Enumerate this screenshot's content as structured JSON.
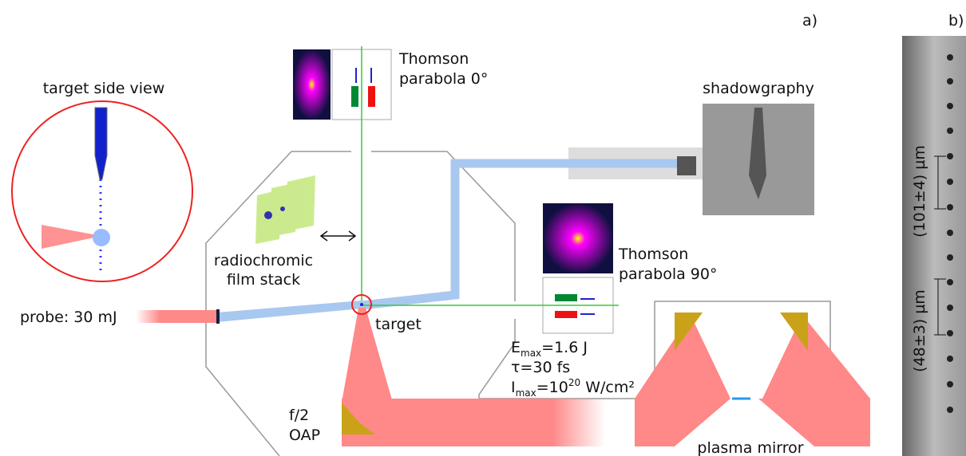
{
  "panel_labels": [
    "a)",
    "b)"
  ],
  "target_view": {
    "title": "target side view"
  },
  "thomson_0": {
    "lines": [
      "Thomson",
      "parabola 0°"
    ]
  },
  "shadowgraphy": {
    "label": "shadowgraphy"
  },
  "film": {
    "lines": [
      "radiochromic",
      "film stack"
    ]
  },
  "thomson_90": {
    "lines": [
      "Thomson",
      "parabola 90°"
    ]
  },
  "probe": {
    "label": "probe: 30 mJ"
  },
  "target": {
    "label": "target"
  },
  "laser": {
    "energy": {
      "symbol": "E",
      "sub": "max",
      "value": "=1.6 J"
    },
    "duration": "τ=30 fs",
    "intensity": {
      "symbol": "I",
      "sub": "max",
      "value": "=10",
      "sup": "20",
      "unit": " W/cm²"
    }
  },
  "oap": {
    "lines": [
      "f/2",
      "OAP"
    ]
  },
  "plasma_mirror": {
    "label": "plasma mirror"
  },
  "scale": {
    "measurements": [
      "(101±4) µm",
      "(48±3) µm"
    ]
  }
}
